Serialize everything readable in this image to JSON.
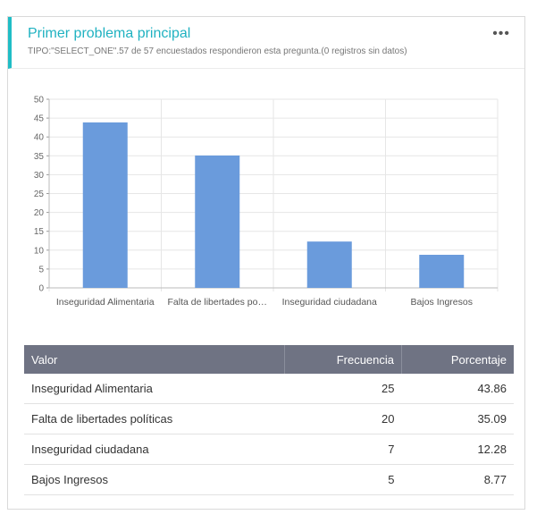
{
  "header": {
    "title": "Primer problema principal",
    "subtitle": "TIPO:\"SELECT_ONE\".57 de 57 encuestados respondieron esta pregunta.(0 registros sin datos)",
    "menu_label": "•••"
  },
  "chart_data": {
    "type": "bar",
    "categories": [
      "Inseguridad Alimentaria",
      "Falta de libertades po…",
      "Inseguridad ciudadana",
      "Bajos Ingresos"
    ],
    "values": [
      43.86,
      35.09,
      12.28,
      8.77
    ],
    "ylim": [
      0,
      50
    ],
    "yticks": [
      0,
      5,
      10,
      15,
      20,
      25,
      30,
      35,
      40,
      45,
      50
    ],
    "grid": true,
    "bar_color": "#6a9bdc"
  },
  "table": {
    "headers": [
      "Valor",
      "Frecuencia",
      "Porcentaje"
    ],
    "rows": [
      [
        "Inseguridad Alimentaria",
        "25",
        "43.86"
      ],
      [
        "Falta de libertades políticas",
        "20",
        "35.09"
      ],
      [
        "Inseguridad ciudadana",
        "7",
        "12.28"
      ],
      [
        "Bajos Ingresos",
        "5",
        "8.77"
      ]
    ]
  }
}
